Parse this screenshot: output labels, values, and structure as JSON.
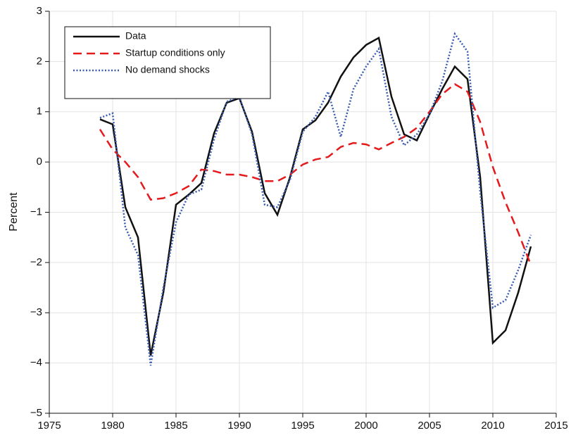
{
  "chart_data": {
    "type": "line",
    "ylabel": "Percent",
    "x": [
      1979,
      1980,
      1981,
      1982,
      1983,
      1984,
      1985,
      1986,
      1987,
      1988,
      1989,
      1990,
      1991,
      1992,
      1993,
      1994,
      1995,
      1996,
      1997,
      1998,
      1999,
      2000,
      2001,
      2002,
      2003,
      2004,
      2005,
      2006,
      2007,
      2008,
      2009,
      2010,
      2011,
      2012,
      2013
    ],
    "series": [
      {
        "name": "Data",
        "color": "#111111",
        "style": "solid",
        "values": [
          0.85,
          0.75,
          -0.9,
          -1.5,
          -3.85,
          -2.6,
          -0.85,
          -0.65,
          -0.42,
          0.57,
          1.18,
          1.27,
          0.6,
          -0.62,
          -1.05,
          -0.3,
          0.65,
          0.83,
          1.18,
          1.7,
          2.08,
          2.33,
          2.47,
          1.3,
          0.55,
          0.43,
          0.95,
          1.45,
          1.9,
          1.65,
          -0.3,
          -3.6,
          -3.35,
          -2.6,
          -1.68
        ]
      },
      {
        "name": "Startup conditions only",
        "color": "#e41a1c",
        "style": "dashed",
        "values": [
          0.65,
          0.25,
          0.0,
          -0.3,
          -0.75,
          -0.72,
          -0.62,
          -0.48,
          -0.15,
          -0.18,
          -0.25,
          -0.25,
          -0.3,
          -0.38,
          -0.38,
          -0.25,
          -0.05,
          0.05,
          0.1,
          0.3,
          0.38,
          0.35,
          0.25,
          0.38,
          0.5,
          0.68,
          1.0,
          1.35,
          1.55,
          1.4,
          0.8,
          -0.1,
          -0.8,
          -1.4,
          -2.05
        ]
      },
      {
        "name": "No demand shocks",
        "color": "#3a5bb0",
        "style": "dotted",
        "values": [
          0.88,
          0.97,
          -1.3,
          -1.85,
          -4.05,
          -2.5,
          -1.2,
          -0.65,
          -0.55,
          0.45,
          1.2,
          1.3,
          0.55,
          -0.85,
          -0.9,
          -0.35,
          0.6,
          0.9,
          1.4,
          0.5,
          1.45,
          1.9,
          2.25,
          0.9,
          0.33,
          0.55,
          0.95,
          1.6,
          2.55,
          2.2,
          -0.6,
          -2.9,
          -2.75,
          -2.15,
          -1.45
        ]
      }
    ],
    "xlim": [
      1975,
      2015
    ],
    "xticks": [
      1975,
      1980,
      1985,
      1990,
      1995,
      2000,
      2005,
      2010,
      2015
    ],
    "ylim": [
      -5,
      3
    ],
    "yticks": [
      {
        "value": -5,
        "label": "−5"
      },
      {
        "value": -4,
        "label": "−4"
      },
      {
        "value": -3,
        "label": "−3"
      },
      {
        "value": -2,
        "label": "−2"
      },
      {
        "value": -1,
        "label": "−1"
      },
      0,
      1,
      2,
      3
    ],
    "grid": true,
    "legend": "upper left"
  }
}
